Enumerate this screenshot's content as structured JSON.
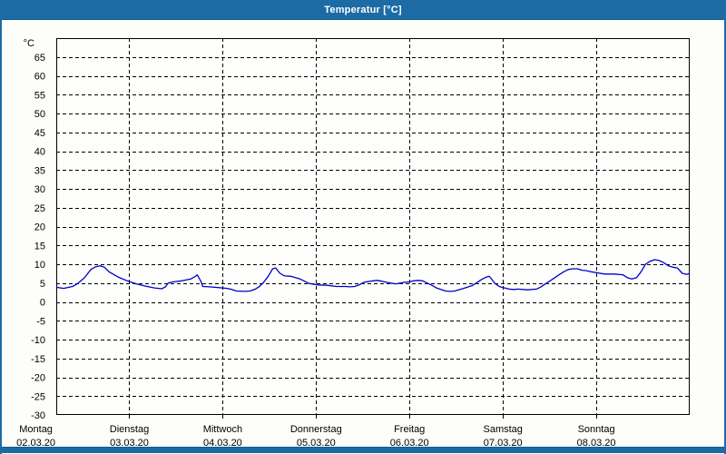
{
  "window": {
    "title": "Temperatur [°C]",
    "titlebar_bg": "#1c6ba5",
    "frame_color": "#1c6ba5",
    "content_bg": "#fdfdfa"
  },
  "chart_data": {
    "type": "line",
    "title": "Temperatur [°C]",
    "unit_label": "°C",
    "grid": "dashed-black",
    "legend": "none",
    "ylim": [
      -30,
      70
    ],
    "xlim_days": [
      0.218,
      7.0
    ],
    "y_axis": {
      "ticks": [
        65,
        60,
        55,
        50,
        45,
        40,
        35,
        30,
        25,
        20,
        15,
        10,
        5,
        0,
        -5,
        -10,
        -15,
        -20,
        -25,
        -30
      ],
      "tick_step": 5
    },
    "x_axis": {
      "days": [
        {
          "name": "Montag",
          "date": "02.03.20"
        },
        {
          "name": "Dienstag",
          "date": "03.03.20"
        },
        {
          "name": "Mittwoch",
          "date": "04.03.20"
        },
        {
          "name": "Donnerstag",
          "date": "05.03.20"
        },
        {
          "name": "Freitag",
          "date": "06.03.20"
        },
        {
          "name": "Samstag",
          "date": "07.03.20"
        },
        {
          "name": "Sonntag",
          "date": "08.03.20"
        }
      ],
      "gridline_days": [
        1,
        2,
        3,
        4,
        5,
        6
      ]
    },
    "series": [
      {
        "name": "Temperatur",
        "color": "#0000c8",
        "points": [
          [
            0.218,
            3.9
          ],
          [
            0.296,
            3.6
          ],
          [
            0.393,
            4.1
          ],
          [
            0.442,
            4.8
          ],
          [
            0.52,
            6.4
          ],
          [
            0.588,
            8.6
          ],
          [
            0.637,
            9.3
          ],
          [
            0.686,
            9.6
          ],
          [
            0.734,
            9.2
          ],
          [
            0.783,
            8.0
          ],
          [
            0.88,
            6.6
          ],
          [
            0.978,
            5.6
          ],
          [
            1.075,
            4.8
          ],
          [
            1.172,
            4.2
          ],
          [
            1.27,
            3.7
          ],
          [
            1.348,
            3.5
          ],
          [
            1.387,
            4.0
          ],
          [
            1.416,
            5.0
          ],
          [
            1.464,
            5.3
          ],
          [
            1.562,
            5.6
          ],
          [
            1.659,
            6.1
          ],
          [
            1.708,
            6.8
          ],
          [
            1.727,
            7.2
          ],
          [
            1.766,
            5.5
          ],
          [
            1.786,
            4.1
          ],
          [
            1.854,
            4.0
          ],
          [
            1.951,
            3.8
          ],
          [
            2.049,
            3.6
          ],
          [
            2.097,
            3.3
          ],
          [
            2.146,
            2.9
          ],
          [
            2.243,
            2.8
          ],
          [
            2.292,
            2.9
          ],
          [
            2.341,
            3.3
          ],
          [
            2.389,
            4.0
          ],
          [
            2.438,
            5.2
          ],
          [
            2.487,
            6.8
          ],
          [
            2.535,
            8.8
          ],
          [
            2.565,
            9.0
          ],
          [
            2.613,
            7.6
          ],
          [
            2.662,
            6.9
          ],
          [
            2.73,
            6.8
          ],
          [
            2.828,
            6.1
          ],
          [
            2.925,
            4.9
          ],
          [
            3.022,
            4.5
          ],
          [
            3.12,
            4.4
          ],
          [
            3.217,
            4.1
          ],
          [
            3.314,
            4.1
          ],
          [
            3.363,
            4.0
          ],
          [
            3.412,
            4.1
          ],
          [
            3.461,
            4.5
          ],
          [
            3.509,
            5.2
          ],
          [
            3.607,
            5.6
          ],
          [
            3.655,
            5.7
          ],
          [
            3.704,
            5.5
          ],
          [
            3.753,
            5.2
          ],
          [
            3.801,
            5.0
          ],
          [
            3.85,
            4.8
          ],
          [
            3.899,
            5.0
          ],
          [
            3.947,
            5.2
          ],
          [
            3.996,
            5.3
          ],
          [
            4.045,
            5.6
          ],
          [
            4.093,
            5.7
          ],
          [
            4.142,
            5.6
          ],
          [
            4.191,
            5.0
          ],
          [
            4.239,
            4.4
          ],
          [
            4.288,
            3.7
          ],
          [
            4.386,
            2.9
          ],
          [
            4.434,
            2.8
          ],
          [
            4.483,
            2.9
          ],
          [
            4.58,
            3.6
          ],
          [
            4.678,
            4.4
          ],
          [
            4.726,
            5.2
          ],
          [
            4.775,
            6.0
          ],
          [
            4.824,
            6.6
          ],
          [
            4.853,
            6.8
          ],
          [
            4.872,
            6.3
          ],
          [
            4.911,
            5.0
          ],
          [
            4.95,
            4.3
          ],
          [
            4.97,
            4.0
          ],
          [
            5.067,
            3.4
          ],
          [
            5.116,
            3.3
          ],
          [
            5.164,
            3.4
          ],
          [
            5.262,
            3.2
          ],
          [
            5.359,
            3.4
          ],
          [
            5.408,
            4.0
          ],
          [
            5.456,
            4.8
          ],
          [
            5.505,
            5.6
          ],
          [
            5.554,
            6.4
          ],
          [
            5.602,
            7.2
          ],
          [
            5.651,
            8.0
          ],
          [
            5.7,
            8.6
          ],
          [
            5.749,
            8.8
          ],
          [
            5.797,
            8.8
          ],
          [
            5.846,
            8.4
          ],
          [
            5.895,
            8.3
          ],
          [
            5.943,
            8.0
          ],
          [
            5.992,
            7.8
          ],
          [
            6.089,
            7.4
          ],
          [
            6.187,
            7.4
          ],
          [
            6.284,
            7.2
          ],
          [
            6.333,
            6.4
          ],
          [
            6.381,
            6.1
          ],
          [
            6.43,
            6.4
          ],
          [
            6.479,
            8.0
          ],
          [
            6.527,
            10.0
          ],
          [
            6.576,
            10.8
          ],
          [
            6.625,
            11.2
          ],
          [
            6.674,
            11.0
          ],
          [
            6.722,
            10.4
          ],
          [
            6.771,
            9.6
          ],
          [
            6.82,
            9.2
          ],
          [
            6.868,
            9.0
          ],
          [
            6.92,
            7.6
          ],
          [
            6.97,
            7.3
          ],
          [
            7.0,
            7.6
          ]
        ]
      }
    ]
  }
}
